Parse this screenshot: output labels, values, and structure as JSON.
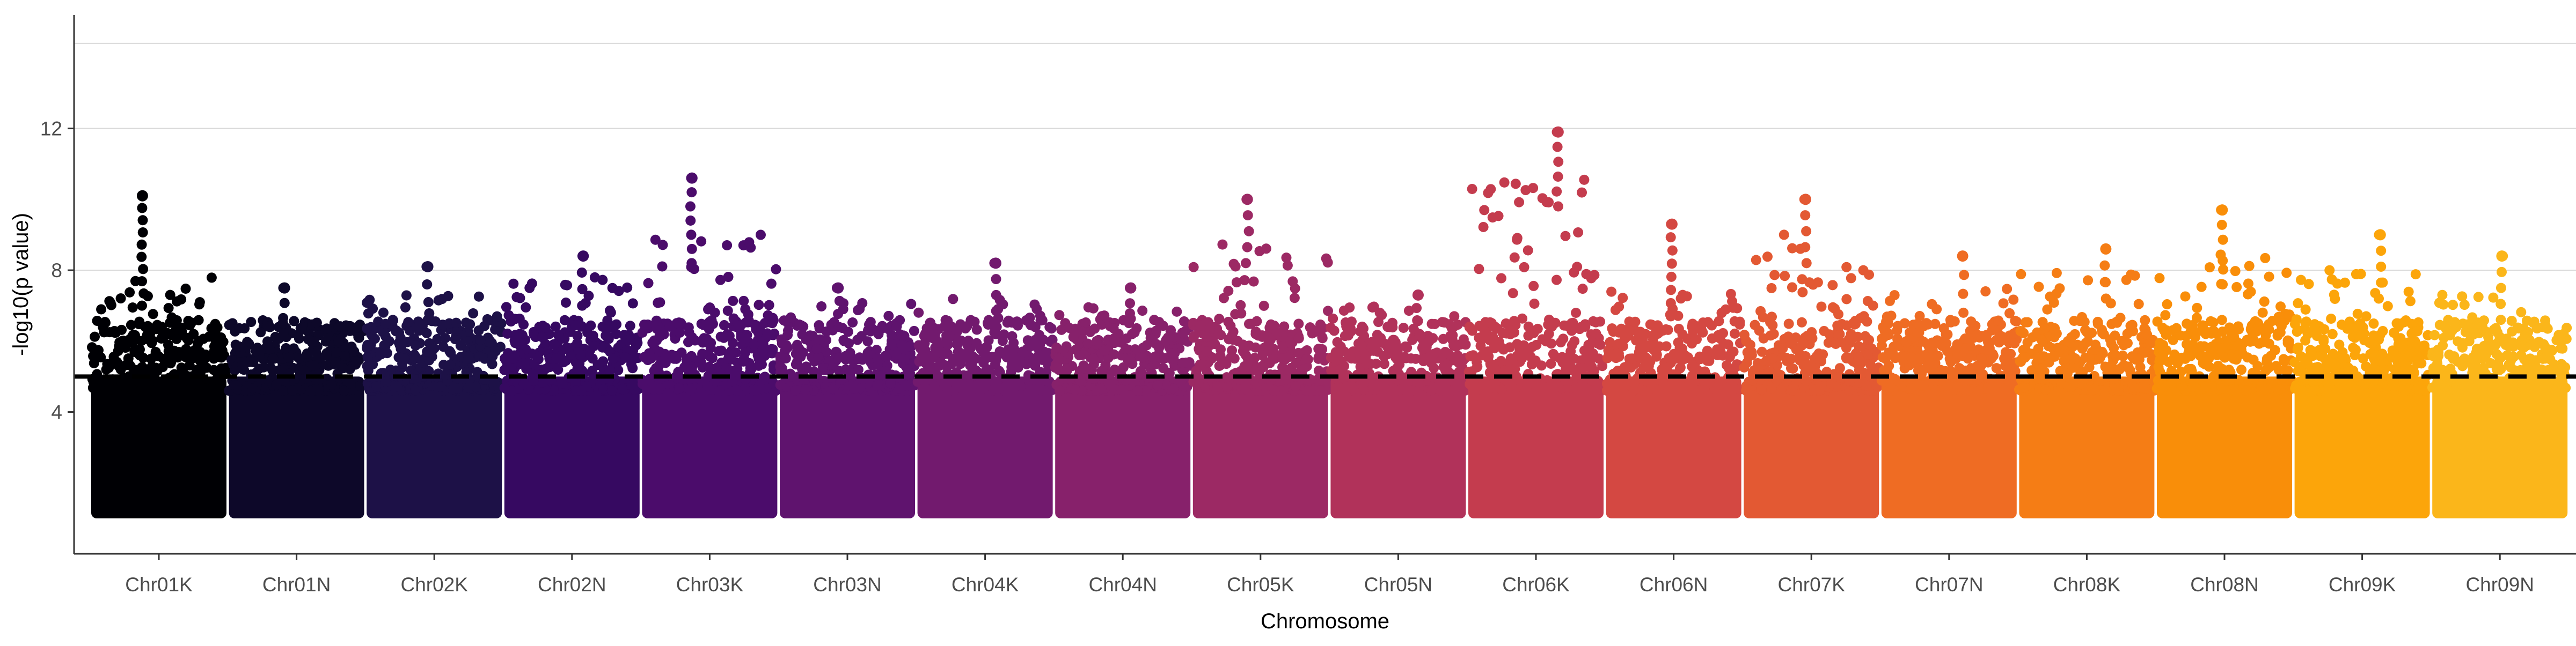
{
  "chart_data": {
    "type": "scatter",
    "subtype": "manhattan",
    "title": "",
    "xlabel": "Chromosome",
    "ylabel": "-log10(p value)",
    "ylim": [
      0,
      15.2
    ],
    "yticks": [
      4,
      8,
      12
    ],
    "grid": "horizontal major lines",
    "legend": "none",
    "threshold": {
      "value": 5,
      "style": "dashed",
      "color": "#000000"
    },
    "point_min": 1,
    "categories": [
      "Chr01K",
      "Chr01N",
      "Chr02K",
      "Chr02N",
      "Chr03K",
      "Chr03N",
      "Chr04K",
      "Chr04N",
      "Chr05K",
      "Chr05N",
      "Chr06K",
      "Chr06N",
      "Chr07K",
      "Chr07N",
      "Chr08K",
      "Chr08N",
      "Chr09K",
      "Chr09N"
    ],
    "colors": [
      "#000004",
      "#0d0829",
      "#1d1147",
      "#360961",
      "#4b0c6b",
      "#5f136e",
      "#721a6e",
      "#87216b",
      "#9c2964",
      "#b1325a",
      "#c43c4e",
      "#d44842",
      "#e35933",
      "#ef6c23",
      "#f57d15",
      "#f98e09",
      "#fca50a",
      "#fbb61a"
    ],
    "series": [
      {
        "name": "Chr01K",
        "peak": 10.1,
        "upper": 7.8
      },
      {
        "name": "Chr01N",
        "peak": 7.5,
        "upper": 6.6
      },
      {
        "name": "Chr02K",
        "peak": 8.1,
        "upper": 7.4
      },
      {
        "name": "Chr02N",
        "peak": 8.4,
        "upper": 7.8
      },
      {
        "name": "Chr03K",
        "peak": 10.6,
        "upper": 9.0
      },
      {
        "name": "Chr03N",
        "peak": 7.5,
        "upper": 7.2
      },
      {
        "name": "Chr04K",
        "peak": 8.2,
        "upper": 7.2
      },
      {
        "name": "Chr04N",
        "peak": 7.5,
        "upper": 7.0
      },
      {
        "name": "Chr05K",
        "peak": 10.0,
        "upper": 9.0
      },
      {
        "name": "Chr05N",
        "peak": 7.3,
        "upper": 7.0
      },
      {
        "name": "Chr06K",
        "peak": 11.9,
        "upper": 10.6
      },
      {
        "name": "Chr06N",
        "peak": 9.3,
        "upper": 7.5
      },
      {
        "name": "Chr07K",
        "peak": 10.0,
        "upper": 9.0
      },
      {
        "name": "Chr07N",
        "peak": 8.4,
        "upper": 7.6
      },
      {
        "name": "Chr08K",
        "peak": 8.6,
        "upper": 8.0
      },
      {
        "name": "Chr08N",
        "peak": 9.7,
        "upper": 8.4
      },
      {
        "name": "Chr09K",
        "peak": 9.0,
        "upper": 8.0
      },
      {
        "name": "Chr09N",
        "peak": 8.4,
        "upper": 7.4
      }
    ]
  }
}
